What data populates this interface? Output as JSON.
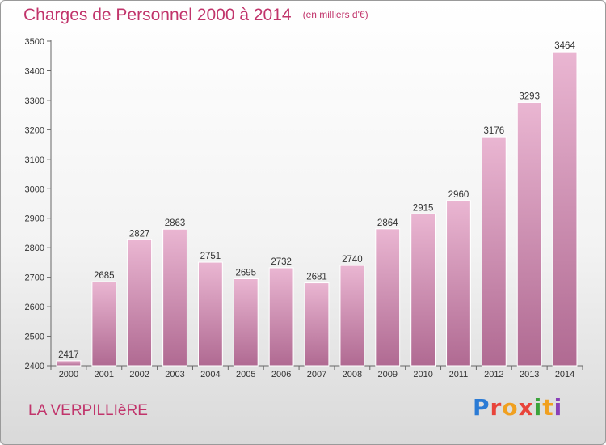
{
  "header": {
    "title": "Charges de Personnel 2000 à 2014",
    "subtitle": "(en milliers d'€)"
  },
  "footer": {
    "commune": "LA VERPILLIèRE",
    "logo_text": "Proxiti",
    "logo_colors": [
      "#2b7bd5",
      "#e8443a",
      "#f0a020",
      "#e8443a",
      "#3aa33a",
      "#f0a020",
      "#8a3fb8"
    ]
  },
  "colors": {
    "bar_light": "#eab6d2",
    "bar_dark": "#b06a92",
    "axis": "#666666",
    "title": "#c1346b"
  },
  "chart_data": {
    "type": "bar",
    "title": "Charges de Personnel 2000 à 2014",
    "subtitle": "(en milliers d'€)",
    "categories": [
      "2000",
      "2001",
      "2002",
      "2003",
      "2004",
      "2005",
      "2006",
      "2007",
      "2008",
      "2009",
      "2010",
      "2011",
      "2012",
      "2013",
      "2014"
    ],
    "values": [
      2417,
      2685,
      2827,
      2863,
      2751,
      2695,
      2732,
      2681,
      2740,
      2864,
      2915,
      2960,
      3176,
      3293,
      3464
    ],
    "ylim": [
      2400,
      3500
    ],
    "yticks": [
      2400,
      2500,
      2600,
      2700,
      2800,
      2900,
      3000,
      3100,
      3200,
      3300,
      3400,
      3500
    ],
    "grid": false,
    "data_labels": true
  }
}
